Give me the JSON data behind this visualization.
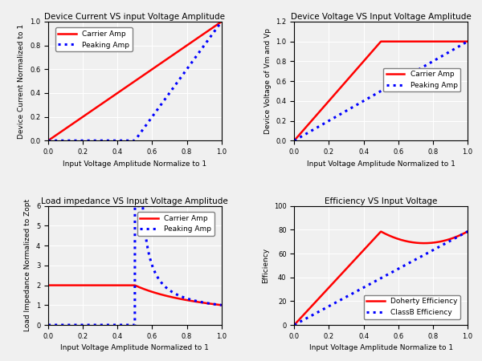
{
  "fig_width": 6.0,
  "fig_height": 4.5,
  "fig_dpi": 100,
  "background_color": "#f0f0f0",
  "plots": [
    {
      "title": "Device Current VS input Voltage Amplitude",
      "xlabel": "Input Voltage Amplitude Normalize to 1",
      "ylabel": "Device Current Normalized to 1",
      "xlim": [
        0.0,
        1.0
      ],
      "ylim": [
        0.0,
        1.0
      ],
      "xticks": [
        0.0,
        0.2,
        0.4,
        0.6,
        0.8,
        1.0
      ],
      "yticks": [
        0.0,
        0.2,
        0.4,
        0.6,
        0.8,
        1.0
      ],
      "legend_loc": "upper left",
      "title_fontsize": 7.5,
      "label_fontsize": 6.5,
      "tick_fontsize": 6,
      "legend_fontsize": 6.5
    },
    {
      "title": "Device Voltage VS Input Voltage Amplitude",
      "xlabel": "Input Voltage Amplitude Normalized to 1",
      "ylabel": "Device Voltage of Vm and Vp",
      "xlim": [
        0.0,
        1.0
      ],
      "ylim": [
        0.0,
        1.2
      ],
      "xticks": [
        0.0,
        0.2,
        0.4,
        0.6,
        0.8,
        1.0
      ],
      "yticks": [
        0.0,
        0.2,
        0.4,
        0.6,
        0.8,
        1.0,
        1.2
      ],
      "legend_loc": "lower right",
      "title_fontsize": 7.5,
      "label_fontsize": 6.5,
      "tick_fontsize": 6,
      "legend_fontsize": 6.5
    },
    {
      "title": "Load impedance VS Input Voltage Amplitude",
      "xlabel": "Input Voltage Amplitude Normalized to 1",
      "ylabel": "Load Impedance Normalized to Zopt",
      "xlim": [
        0.0,
        1.0
      ],
      "ylim": [
        0.0,
        6.0
      ],
      "xticks": [
        0.0,
        0.2,
        0.4,
        0.6,
        0.8,
        1.0
      ],
      "yticks": [
        0,
        1,
        2,
        3,
        4,
        5,
        6
      ],
      "legend_loc": "upper center",
      "title_fontsize": 7.5,
      "label_fontsize": 6.5,
      "tick_fontsize": 6,
      "legend_fontsize": 6.5
    },
    {
      "title": "Efficiency VS Input Voltage",
      "xlabel": "Input Voltage Amplitude Normalize to 1",
      "ylabel": "Efficiency",
      "xlim": [
        0.0,
        1.0
      ],
      "ylim": [
        0.0,
        100.0
      ],
      "xticks": [
        0.0,
        0.2,
        0.4,
        0.6,
        0.8,
        1.0
      ],
      "yticks": [
        0,
        20,
        40,
        60,
        80,
        100
      ],
      "legend_loc": "lower right",
      "title_fontsize": 7.5,
      "label_fontsize": 6.5,
      "tick_fontsize": 6,
      "legend_fontsize": 6.5
    }
  ]
}
